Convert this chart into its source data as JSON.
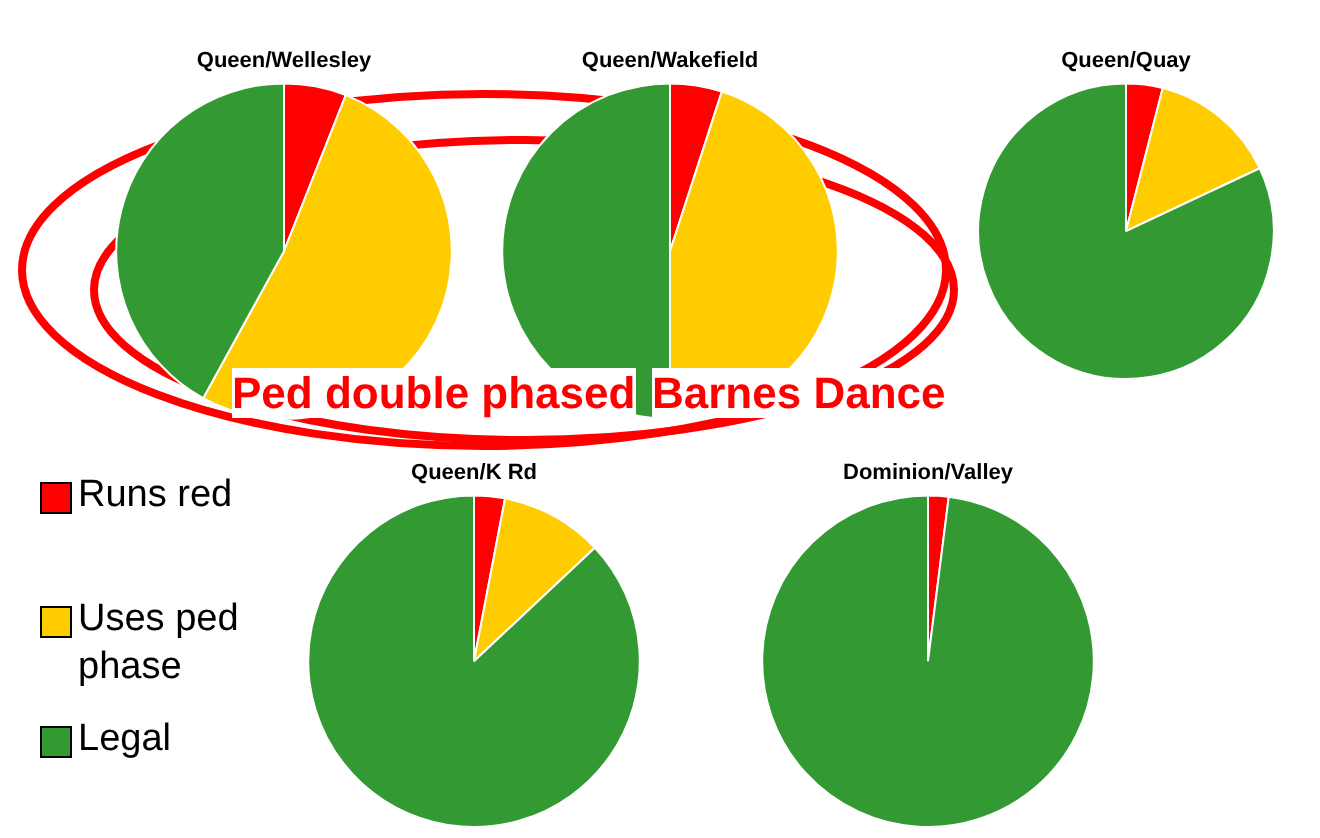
{
  "chart_data": [
    {
      "type": "pie",
      "title": "Queen/Wellesley",
      "categories": [
        "Runs red",
        "Uses ped phase",
        "Legal"
      ],
      "values": [
        6,
        52,
        42
      ],
      "colors": [
        "#ff0000",
        "#ffcc00",
        "#339933"
      ],
      "annotations": [
        "Ped double phased",
        "Barnes Dance"
      ],
      "legend": "bottom left"
    },
    {
      "type": "pie",
      "title": "Queen/Wakefield",
      "values": [
        5,
        45,
        50
      ],
      "colors": [
        "#ff0000",
        "#ffcc00",
        "#339933"
      ]
    },
    {
      "type": "pie",
      "title": "Queen/Quay",
      "values": [
        4,
        14,
        82
      ],
      "colors": [
        "#ff0000",
        "#ffcc00",
        "#339933"
      ]
    },
    {
      "type": "pie",
      "title": "Queen/K Rd",
      "values": [
        3,
        10,
        87
      ],
      "colors": [
        "#ff0000",
        "#ffcc00",
        "#339933"
      ]
    },
    {
      "type": "pie",
      "title": "Dominion/Valley",
      "values": [
        2,
        0,
        98
      ],
      "colors": [
        "#ff0000",
        "#ffcc00",
        "#339933"
      ]
    }
  ]
}
